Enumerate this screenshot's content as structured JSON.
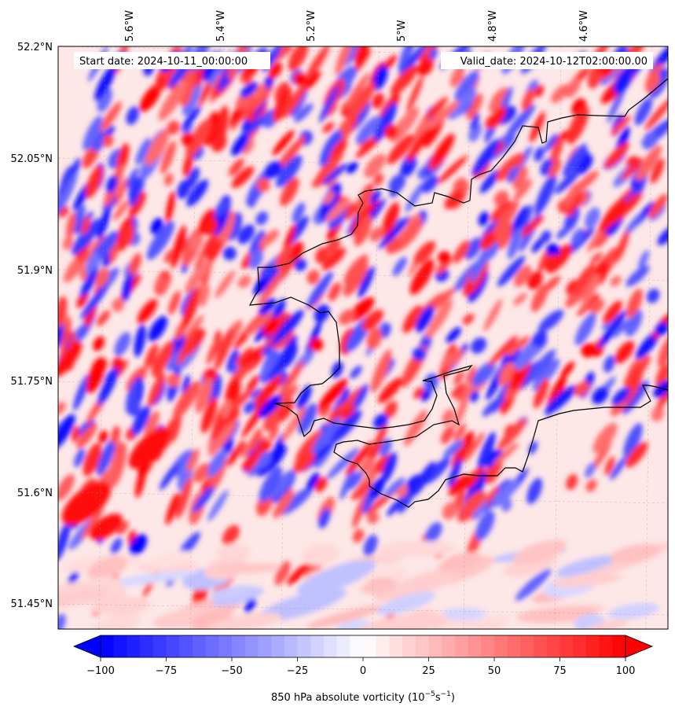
{
  "header": {
    "start_date": "Start date: 2024-10-11_00:00:00",
    "valid_date": "Valid_date: 2024-10-12T02:00:00.00"
  },
  "map": {
    "lon_labels": [
      "5.6°W",
      "5.4°W",
      "5.2°W",
      "5°W",
      "4.8°W",
      "4.6°W"
    ],
    "lat_labels": [
      "52.2°N",
      "52.05°N",
      "51.9°N",
      "51.75°N",
      "51.6°N",
      "51.45°N"
    ],
    "field": "850 hPa absolute vorticity",
    "gridlines": true,
    "coastline_color": "#000000"
  },
  "colorbar": {
    "ticks": [
      "−100",
      "−75",
      "−50",
      "−25",
      "0",
      "25",
      "50",
      "75",
      "100"
    ],
    "vmin": -100,
    "vmax": 100,
    "extend": "both",
    "cmap": "bwr",
    "label_text": "850 hPa absolute vorticity (10",
    "label_exp1": "−5",
    "label_mid": "s",
    "label_exp2": "−1",
    "label_close": ")"
  }
}
